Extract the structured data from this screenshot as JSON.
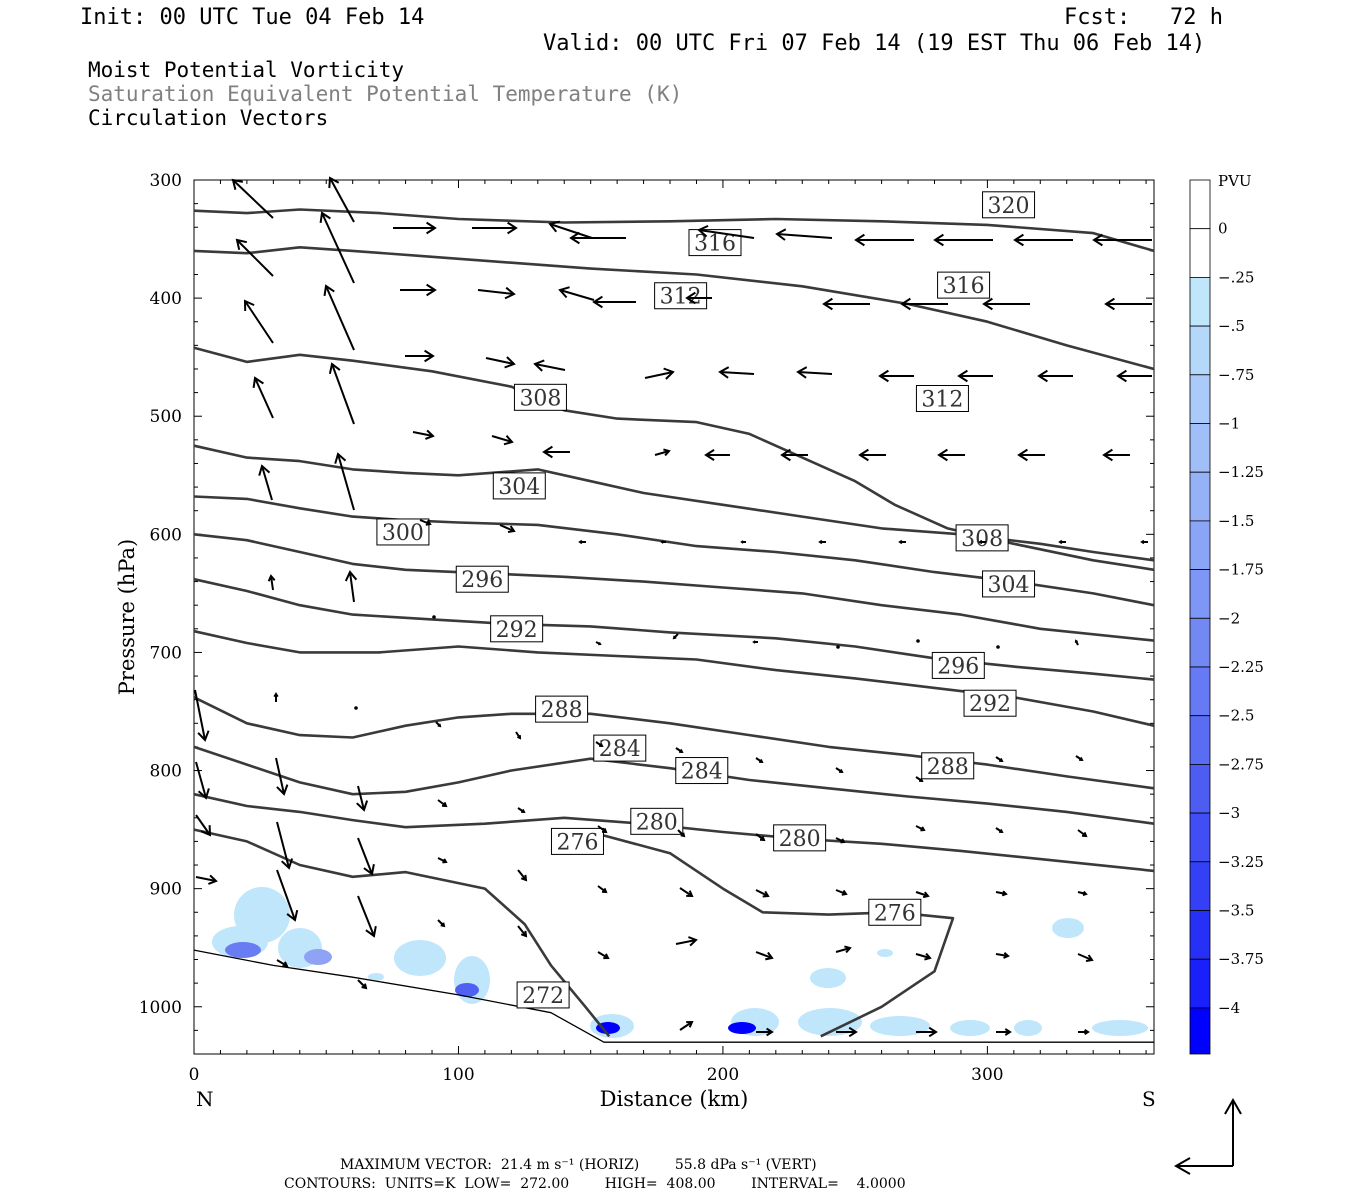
{
  "header": {
    "init": "Init: 00 UTC Tue 04 Feb 14",
    "fcst": "Fcst:   72 h",
    "valid": "Valid: 00 UTC Fri 07 Feb 14 (19 EST Thu 06 Feb 14)"
  },
  "fields": {
    "line1": "Moist Potential Vorticity",
    "line2": "Saturation Equivalent Potential Temperature (K)",
    "line3": "Circulation Vectors"
  },
  "footer": {
    "max_vector": "MAXIMUM VECTOR:  21.4 m s⁻¹ (HORIZ)        55.8 dPa s⁻¹ (VERT)",
    "contours": "CONTOURS:  UNITS=K  LOW=  272.00        HIGH=  408.00        INTERVAL=    4.0000"
  },
  "colors": {
    "contour": "#3a3a3a",
    "pv_light": "#bfe6fb",
    "pv_dark": "#0000ff"
  },
  "chart_data": {
    "type": "contour",
    "xlabel": "Distance (km)",
    "ylabel": "Pressure (hPa)",
    "xlim": [
      0,
      363
    ],
    "ylim": [
      300,
      1040
    ],
    "x_ticks": [
      0,
      100,
      200,
      300
    ],
    "y_ticks": [
      300,
      400,
      500,
      600,
      700,
      800,
      900,
      1000
    ],
    "x_end_labels": {
      "left": "N",
      "right": "S"
    },
    "colorbar": {
      "unit": "PVU",
      "levels": [
        "0",
        "-.25",
        "-.5",
        "-.75",
        "-1",
        "-1.25",
        "-1.5",
        "-1.75",
        "-2",
        "-2.25",
        "-2.5",
        "-2.75",
        "-3",
        "-3.25",
        "-3.5",
        "-3.75",
        "-4"
      ],
      "colors": [
        "#ffffff",
        "#ffffff",
        "#bfe6fb",
        "#b4d8fa",
        "#aacbf9",
        "#a0bff8",
        "#95b2f7",
        "#8aa5f6",
        "#7e96f5",
        "#7289f4",
        "#667bf3",
        "#5a6cf2",
        "#4d5df2",
        "#404ef3",
        "#3340f5",
        "#2630f7",
        "#1a20f9",
        "#0000ff"
      ]
    },
    "contours": [
      {
        "label": "272",
        "points": [
          [
            0,
            952
          ],
          [
            30,
            965
          ],
          [
            60,
            975
          ],
          [
            100,
            990
          ],
          [
            135,
            1005
          ],
          [
            155,
            1030
          ],
          [
            363,
            1030
          ]
        ],
        "labels": [
          [
            132,
            990
          ]
        ]
      },
      {
        "label": "276",
        "points": [
          [
            0,
            850
          ],
          [
            20,
            860
          ],
          [
            40,
            880
          ],
          [
            60,
            890
          ],
          [
            80,
            886
          ],
          [
            110,
            900
          ],
          [
            125,
            930
          ],
          [
            135,
            965
          ],
          [
            148,
            1000
          ],
          [
            157,
            1025
          ]
        ],
        "labels": [
          [
            145,
            860
          ]
        ]
      },
      {
        "label": "276b",
        "points": [
          [
            155,
            855
          ],
          [
            180,
            870
          ],
          [
            200,
            900
          ],
          [
            215,
            920
          ],
          [
            240,
            922
          ],
          [
            265,
            920
          ],
          [
            287,
            925
          ],
          [
            280,
            970
          ],
          [
            260,
            1000
          ],
          [
            237,
            1025
          ]
        ],
        "labels": [
          [
            265,
            920
          ]
        ]
      },
      {
        "label": "280",
        "points": [
          [
            0,
            820
          ],
          [
            20,
            830
          ],
          [
            40,
            835
          ],
          [
            60,
            842
          ],
          [
            80,
            848
          ],
          [
            110,
            845
          ],
          [
            140,
            840
          ],
          [
            170,
            845
          ],
          [
            200,
            852
          ],
          [
            230,
            858
          ],
          [
            260,
            862
          ],
          [
            290,
            868
          ],
          [
            320,
            875
          ],
          [
            363,
            885
          ]
        ],
        "labels": [
          [
            175,
            843
          ],
          [
            229,
            857
          ]
        ]
      },
      {
        "label": "284",
        "points": [
          [
            0,
            780
          ],
          [
            20,
            795
          ],
          [
            40,
            810
          ],
          [
            60,
            820
          ],
          [
            80,
            818
          ],
          [
            100,
            810
          ],
          [
            120,
            800
          ],
          [
            150,
            790
          ],
          [
            180,
            798
          ],
          [
            210,
            808
          ],
          [
            240,
            815
          ],
          [
            270,
            822
          ],
          [
            300,
            828
          ],
          [
            330,
            835
          ],
          [
            363,
            845
          ]
        ],
        "labels": [
          [
            161,
            781
          ],
          [
            192,
            800
          ]
        ]
      },
      {
        "label": "288",
        "points": [
          [
            0,
            738
          ],
          [
            20,
            760
          ],
          [
            40,
            770
          ],
          [
            60,
            772
          ],
          [
            80,
            762
          ],
          [
            100,
            755
          ],
          [
            120,
            752
          ],
          [
            150,
            752
          ],
          [
            180,
            760
          ],
          [
            210,
            770
          ],
          [
            240,
            780
          ],
          [
            270,
            787
          ],
          [
            300,
            795
          ],
          [
            330,
            805
          ],
          [
            363,
            815
          ]
        ],
        "labels": [
          [
            139,
            748
          ],
          [
            285,
            796
          ]
        ]
      },
      {
        "label": "292",
        "points": [
          [
            0,
            682
          ],
          [
            20,
            692
          ],
          [
            40,
            700
          ],
          [
            70,
            700
          ],
          [
            100,
            695
          ],
          [
            130,
            700
          ],
          [
            160,
            703
          ],
          [
            190,
            706
          ],
          [
            220,
            715
          ],
          [
            250,
            722
          ],
          [
            280,
            730
          ],
          [
            310,
            738
          ],
          [
            340,
            750
          ],
          [
            363,
            762
          ]
        ],
        "labels": [
          [
            122,
            680
          ],
          [
            301,
            743
          ]
        ]
      },
      {
        "label": "296",
        "points": [
          [
            0,
            638
          ],
          [
            20,
            648
          ],
          [
            40,
            660
          ],
          [
            60,
            668
          ],
          [
            90,
            672
          ],
          [
            120,
            676
          ],
          [
            150,
            678
          ],
          [
            180,
            683
          ],
          [
            220,
            688
          ],
          [
            250,
            695
          ],
          [
            280,
            705
          ],
          [
            310,
            712
          ],
          [
            340,
            718
          ],
          [
            363,
            723
          ]
        ],
        "labels": [
          [
            109,
            638
          ],
          [
            289,
            711
          ]
        ]
      },
      {
        "label": "300",
        "points": [
          [
            0,
            600
          ],
          [
            20,
            605
          ],
          [
            40,
            615
          ],
          [
            60,
            625
          ],
          [
            80,
            630
          ],
          [
            110,
            633
          ],
          [
            140,
            636
          ],
          [
            170,
            640
          ],
          [
            200,
            645
          ],
          [
            230,
            650
          ],
          [
            260,
            660
          ],
          [
            290,
            668
          ],
          [
            320,
            680
          ],
          [
            363,
            690
          ]
        ],
        "labels": [
          [
            79,
            598
          ]
        ]
      },
      {
        "label": "304",
        "points": [
          [
            0,
            568
          ],
          [
            20,
            570
          ],
          [
            40,
            578
          ],
          [
            60,
            585
          ],
          [
            80,
            588
          ],
          [
            100,
            590
          ],
          [
            130,
            592
          ],
          [
            160,
            600
          ],
          [
            190,
            610
          ],
          [
            220,
            615
          ],
          [
            250,
            622
          ],
          [
            280,
            632
          ],
          [
            310,
            640
          ],
          [
            340,
            650
          ],
          [
            363,
            660
          ]
        ],
        "labels": [
          [
            123,
            559
          ],
          [
            308,
            642
          ]
        ]
      },
      {
        "label": "308",
        "points": [
          [
            0,
            525
          ],
          [
            20,
            535
          ],
          [
            40,
            538
          ],
          [
            60,
            545
          ],
          [
            80,
            548
          ],
          [
            100,
            550
          ],
          [
            130,
            545
          ],
          [
            150,
            555
          ],
          [
            170,
            565
          ],
          [
            200,
            575
          ],
          [
            230,
            585
          ],
          [
            260,
            595
          ],
          [
            290,
            600
          ],
          [
            320,
            608
          ],
          [
            340,
            615
          ],
          [
            363,
            622
          ]
        ],
        "labels": [
          [
            131,
            484
          ],
          [
            298,
            603
          ]
        ]
      },
      {
        "label": "312",
        "points": [
          [
            0,
            442
          ],
          [
            20,
            454
          ],
          [
            40,
            448
          ],
          [
            60,
            453
          ],
          [
            90,
            462
          ],
          [
            120,
            475
          ],
          [
            140,
            495
          ],
          [
            160,
            502
          ],
          [
            190,
            505
          ],
          [
            210,
            515
          ],
          [
            230,
            535
          ],
          [
            250,
            555
          ],
          [
            265,
            575
          ],
          [
            285,
            595
          ],
          [
            310,
            608
          ],
          [
            340,
            622
          ],
          [
            363,
            630
          ]
        ],
        "labels": [
          [
            184,
            398
          ],
          [
            283,
            485
          ]
        ]
      },
      {
        "label": "316",
        "points": [
          [
            0,
            360
          ],
          [
            20,
            362
          ],
          [
            40,
            357
          ],
          [
            60,
            360
          ],
          [
            90,
            365
          ],
          [
            120,
            370
          ],
          [
            150,
            375
          ],
          [
            190,
            380
          ],
          [
            230,
            390
          ],
          [
            270,
            405
          ],
          [
            300,
            420
          ],
          [
            330,
            440
          ],
          [
            363,
            460
          ]
        ],
        "labels": [
          [
            197,
            353
          ],
          [
            291,
            389
          ]
        ]
      },
      {
        "label": "320",
        "points": [
          [
            0,
            326
          ],
          [
            20,
            328
          ],
          [
            40,
            325
          ],
          [
            70,
            328
          ],
          [
            100,
            333
          ],
          [
            140,
            336
          ],
          [
            180,
            335
          ],
          [
            220,
            333
          ],
          [
            260,
            335
          ],
          [
            300,
            338
          ],
          [
            340,
            345
          ],
          [
            363,
            360
          ]
        ],
        "labels": [
          [
            308,
            321
          ]
        ]
      }
    ]
  }
}
